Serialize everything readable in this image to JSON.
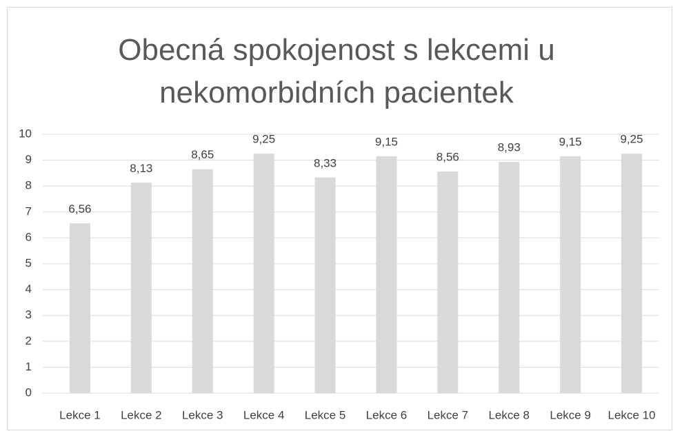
{
  "chart_data": {
    "type": "bar",
    "title": "Obecná spokojenost s lekcemi u nekomorbidních pacientek",
    "categories": [
      "Lekce 1",
      "Lekce 2",
      "Lekce 3",
      "Lekce 4",
      "Lekce 5",
      "Lekce 6",
      "Lekce 7",
      "Lekce 8",
      "Lekce 9",
      "Lekce 10"
    ],
    "values": [
      6.56,
      8.13,
      8.65,
      9.25,
      8.33,
      9.15,
      8.56,
      8.93,
      9.15,
      9.25
    ],
    "value_labels": [
      "6,56",
      "8,13",
      "8,65",
      "9,25",
      "8,33",
      "9,15",
      "8,56",
      "8,93",
      "9,15",
      "9,25"
    ],
    "color": "#d9d9d9",
    "ylim": [
      0,
      10
    ],
    "yticks": [
      0,
      1,
      2,
      3,
      4,
      5,
      6,
      7,
      8,
      9,
      10
    ],
    "grid": true
  }
}
